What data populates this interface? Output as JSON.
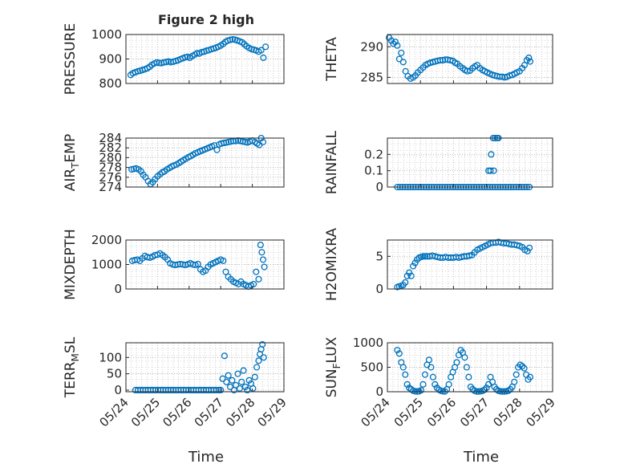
{
  "figure": {
    "title": "Figure 2 high",
    "xlabel": "Time",
    "marker_color": "#0072BD",
    "axis_color": "#262626",
    "grid_color": "#b0b0b0"
  },
  "chart_data": [
    {
      "type": "scatter",
      "ylabel": "PRESSURE",
      "ylabel_sub": "",
      "xlim": [
        0,
        5
      ],
      "ylim": [
        800,
        1000
      ],
      "yticks": [
        800,
        900,
        1000
      ],
      "yticklabels": [
        "800",
        "900",
        "1000"
      ],
      "xticklabels": [],
      "x": [
        0.15,
        0.22,
        0.3,
        0.38,
        0.45,
        0.52,
        0.6,
        0.68,
        0.75,
        0.82,
        0.9,
        0.98,
        1.05,
        1.12,
        1.2,
        1.28,
        1.35,
        1.42,
        1.5,
        1.58,
        1.65,
        1.72,
        1.8,
        1.88,
        1.95,
        2.02,
        2.1,
        2.18,
        2.25,
        2.32,
        2.4,
        2.48,
        2.55,
        2.62,
        2.7,
        2.78,
        2.85,
        2.92,
        3.0,
        3.08,
        3.15,
        3.22,
        3.3,
        3.38,
        3.45,
        3.52,
        3.6,
        3.68,
        3.75,
        3.82,
        3.9,
        3.98,
        4.05,
        4.12,
        4.2,
        4.28,
        4.35,
        4.42
      ],
      "y": [
        835,
        842,
        846,
        850,
        852,
        855,
        858,
        862,
        868,
        876,
        882,
        886,
        884,
        883,
        886,
        888,
        890,
        887,
        889,
        892,
        895,
        899,
        903,
        907,
        909,
        905,
        912,
        918,
        924,
        922,
        928,
        930,
        934,
        936,
        940,
        943,
        946,
        950,
        955,
        962,
        970,
        975,
        978,
        980,
        979,
        976,
        972,
        968,
        960,
        952,
        945,
        940,
        938,
        935,
        930,
        936,
        905,
        950
      ]
    },
    {
      "type": "scatter",
      "ylabel": "THETA",
      "ylabel_sub": "",
      "xlim": [
        0,
        5
      ],
      "ylim": [
        284,
        292
      ],
      "yticks": [
        285,
        290
      ],
      "yticklabels": [
        "285",
        "290"
      ],
      "xticklabels": [],
      "x": [
        0.05,
        0.12,
        0.18,
        0.24,
        0.3,
        0.36,
        0.42,
        0.48,
        0.55,
        0.62,
        0.7,
        0.78,
        0.85,
        0.92,
        1.0,
        1.08,
        1.15,
        1.22,
        1.3,
        1.38,
        1.45,
        1.52,
        1.6,
        1.68,
        1.75,
        1.82,
        1.9,
        1.98,
        2.05,
        2.12,
        2.2,
        2.28,
        2.35,
        2.42,
        2.5,
        2.58,
        2.65,
        2.72,
        2.8,
        2.88,
        2.95,
        3.02,
        3.1,
        3.18,
        3.25,
        3.32,
        3.4,
        3.48,
        3.55,
        3.62,
        3.7,
        3.78,
        3.85,
        3.92,
        4.0,
        4.08,
        4.15,
        4.22,
        4.28,
        4.32
      ],
      "y": [
        291.5,
        291,
        290.5,
        290.8,
        290.2,
        288,
        289,
        287.5,
        286,
        285.2,
        284.8,
        285,
        285.3,
        285.8,
        286.2,
        286.6,
        287,
        287.2,
        287.4,
        287.5,
        287.6,
        287.7,
        287.8,
        287.8,
        287.9,
        287.9,
        287.8,
        287.7,
        287.4,
        287.2,
        286.8,
        286.5,
        286.2,
        286,
        286.1,
        286.5,
        286.8,
        287,
        286.5,
        286.2,
        286,
        285.8,
        285.6,
        285.4,
        285.3,
        285.2,
        285.1,
        285.1,
        285,
        285.1,
        285.3,
        285.4,
        285.6,
        285.8,
        286,
        286.5,
        287,
        287.8,
        288.2,
        287.6
      ]
    },
    {
      "type": "scatter",
      "ylabel": "AIR",
      "ylabel_sub": "T",
      "ylabel_suffix": "EMP",
      "xlim": [
        0,
        5
      ],
      "ylim": [
        274,
        284
      ],
      "yticks": [
        274,
        276,
        278,
        280,
        282,
        284
      ],
      "yticklabels": [
        "274",
        "276",
        "278",
        "280",
        "282",
        "284"
      ],
      "xticklabels": [],
      "x": [
        0.18,
        0.25,
        0.32,
        0.4,
        0.48,
        0.55,
        0.62,
        0.7,
        0.78,
        0.85,
        0.92,
        1.0,
        1.08,
        1.15,
        1.22,
        1.3,
        1.38,
        1.45,
        1.52,
        1.6,
        1.68,
        1.75,
        1.82,
        1.9,
        1.98,
        2.05,
        2.12,
        2.2,
        2.28,
        2.35,
        2.42,
        2.5,
        2.58,
        2.65,
        2.72,
        2.8,
        2.88,
        2.95,
        3.02,
        3.1,
        3.18,
        3.25,
        3.32,
        3.4,
        3.48,
        3.55,
        3.62,
        3.7,
        3.78,
        3.85,
        3.92,
        4.0,
        4.08,
        4.15,
        4.22,
        4.28,
        4.34
      ],
      "y": [
        277.6,
        277.7,
        277.8,
        277.6,
        277.2,
        276.5,
        276,
        275.2,
        274.6,
        275,
        275.6,
        276.2,
        276.6,
        277,
        277.2,
        277.6,
        277.9,
        278.2,
        278.4,
        278.6,
        278.9,
        279.2,
        279.5,
        279.8,
        280.1,
        280.3,
        280.6,
        280.9,
        281.1,
        281.3,
        281.5,
        281.7,
        281.9,
        282.1,
        282.3,
        282.5,
        281.6,
        282.7,
        282.9,
        283,
        283.1,
        283.2,
        283.3,
        283.4,
        283.4,
        283.5,
        283.4,
        283.3,
        283.2,
        283.1,
        283.3,
        283.5,
        283.2,
        282.9,
        282.6,
        284,
        283.2
      ]
    },
    {
      "type": "scatter",
      "ylabel": "RAINFALL",
      "ylabel_sub": "",
      "xlim": [
        0,
        5
      ],
      "ylim": [
        0,
        0.3
      ],
      "yticks": [
        0,
        0.1,
        0.2
      ],
      "yticklabels": [
        "0",
        "0.1",
        "0.2"
      ],
      "xticklabels": [],
      "x": [
        0.3,
        0.38,
        0.46,
        0.54,
        0.62,
        0.7,
        0.78,
        0.86,
        0.94,
        1.02,
        1.1,
        1.18,
        1.26,
        1.34,
        1.42,
        1.5,
        1.58,
        1.66,
        1.74,
        1.82,
        1.9,
        1.98,
        2.06,
        2.14,
        2.22,
        2.3,
        2.38,
        2.46,
        2.54,
        2.62,
        2.7,
        2.78,
        2.86,
        2.94,
        3.02,
        3.1,
        3.18,
        3.26,
        3.34,
        3.42,
        3.5,
        3.58,
        3.66,
        3.74,
        3.82,
        3.9,
        3.98,
        4.06,
        4.14,
        4.22,
        4.3,
        3.06,
        3.14,
        3.2,
        3.22,
        3.26,
        3.32,
        3.36,
        3.12
      ],
      "y": [
        0,
        0,
        0,
        0,
        0,
        0,
        0,
        0,
        0,
        0,
        0,
        0,
        0,
        0,
        0,
        0,
        0,
        0,
        0,
        0,
        0,
        0,
        0,
        0,
        0,
        0,
        0,
        0,
        0,
        0,
        0,
        0,
        0,
        0,
        0,
        0,
        0,
        0,
        0,
        0,
        0,
        0,
        0,
        0,
        0,
        0,
        0,
        0,
        0,
        0,
        0,
        0.1,
        0.2,
        0.3,
        0.1,
        0.3,
        0.3,
        0.3,
        0.1
      ]
    },
    {
      "type": "scatter",
      "ylabel": "MIXDEPTH",
      "ylabel_sub": "",
      "xlim": [
        0,
        5
      ],
      "ylim": [
        0,
        2000
      ],
      "yticks": [
        0,
        1000,
        2000
      ],
      "yticklabels": [
        "0",
        "1000",
        "2000"
      ],
      "xticklabels": [],
      "x": [
        0.2,
        0.28,
        0.36,
        0.44,
        0.52,
        0.6,
        0.68,
        0.76,
        0.84,
        0.92,
        1.0,
        1.08,
        1.16,
        1.24,
        1.32,
        1.4,
        1.48,
        1.56,
        1.64,
        1.72,
        1.8,
        1.88,
        1.96,
        2.04,
        2.12,
        2.2,
        2.28,
        2.36,
        2.44,
        2.52,
        2.6,
        2.68,
        2.76,
        2.84,
        2.92,
        3.0,
        3.08,
        3.16,
        3.24,
        3.32,
        3.4,
        3.48,
        3.56,
        3.64,
        3.72,
        3.8,
        3.88,
        3.96,
        4.04,
        4.12,
        4.2,
        4.26,
        4.3,
        4.34,
        4.38
      ],
      "y": [
        1150,
        1180,
        1200,
        1150,
        1250,
        1350,
        1300,
        1280,
        1320,
        1380,
        1400,
        1450,
        1380,
        1300,
        1200,
        1050,
        1000,
        980,
        1000,
        1020,
        1000,
        980,
        1010,
        1050,
        1000,
        980,
        1020,
        800,
        700,
        750,
        900,
        1000,
        1050,
        1100,
        1150,
        1200,
        1150,
        700,
        500,
        400,
        300,
        250,
        200,
        300,
        200,
        150,
        100,
        150,
        200,
        700,
        400,
        1800,
        1500,
        1200,
        900
      ]
    },
    {
      "type": "scatter",
      "ylabel": "H2OMIXRA",
      "ylabel_sub": "",
      "xlim": [
        0,
        5
      ],
      "ylim": [
        0,
        7.5
      ],
      "yticks": [
        0,
        5
      ],
      "yticklabels": [
        "0",
        "5"
      ],
      "xticklabels": [],
      "x": [
        0.3,
        0.36,
        0.42,
        0.48,
        0.54,
        0.6,
        0.66,
        0.72,
        0.78,
        0.84,
        0.9,
        0.96,
        1.02,
        1.08,
        1.14,
        1.2,
        1.28,
        1.36,
        1.44,
        1.52,
        1.6,
        1.68,
        1.76,
        1.84,
        1.92,
        2.0,
        2.08,
        2.16,
        2.24,
        2.32,
        2.4,
        2.48,
        2.56,
        2.64,
        2.72,
        2.8,
        2.88,
        2.96,
        3.04,
        3.12,
        3.2,
        3.28,
        3.36,
        3.44,
        3.52,
        3.6,
        3.68,
        3.76,
        3.84,
        3.92,
        4.0,
        4.08,
        4.16,
        4.24,
        4.3
      ],
      "y": [
        0.3,
        0.4,
        0.5,
        0.6,
        1.0,
        2.0,
        2.5,
        2.0,
        3.5,
        4.0,
        4.5,
        4.8,
        4.9,
        5.0,
        5.0,
        5.0,
        5.0,
        5.1,
        5.0,
        4.9,
        4.8,
        4.8,
        4.9,
        4.8,
        4.8,
        4.8,
        4.9,
        4.8,
        4.9,
        5.0,
        5.0,
        5.1,
        5.2,
        5.6,
        6.0,
        6.2,
        6.4,
        6.6,
        6.8,
        7.0,
        7.1,
        7.1,
        7.2,
        7.1,
        7.0,
        7.0,
        6.9,
        6.8,
        6.8,
        6.7,
        6.6,
        6.4,
        6.0,
        5.8,
        6.3
      ]
    },
    {
      "type": "scatter",
      "ylabel": "TERR",
      "ylabel_sub": "M",
      "ylabel_suffix": "SL",
      "xlim": [
        0,
        5
      ],
      "ylim": [
        -5,
        145
      ],
      "yticks": [
        0,
        50,
        100
      ],
      "yticklabels": [
        "0",
        "50",
        "100"
      ],
      "xticklabels": [
        "05/24",
        "05/25",
        "05/26",
        "05/27",
        "05/28",
        "05/29"
      ],
      "x": [
        0.3,
        0.38,
        0.46,
        0.54,
        0.62,
        0.7,
        0.78,
        0.86,
        0.94,
        1.02,
        1.1,
        1.18,
        1.26,
        1.34,
        1.42,
        1.5,
        1.58,
        1.66,
        1.74,
        1.82,
        1.9,
        1.98,
        2.06,
        2.14,
        2.22,
        2.3,
        2.38,
        2.46,
        2.54,
        2.62,
        2.7,
        2.78,
        2.86,
        2.94,
        3.0,
        3.06,
        3.12,
        3.18,
        3.24,
        3.3,
        3.36,
        3.42,
        3.48,
        3.54,
        3.6,
        3.66,
        3.72,
        3.78,
        3.84,
        3.9,
        3.96,
        4.02,
        4.08,
        4.14,
        4.2,
        4.24,
        4.28,
        4.32,
        4.36
      ],
      "y": [
        0,
        0,
        0,
        0,
        0,
        0,
        0,
        0,
        0,
        0,
        0,
        0,
        0,
        0,
        0,
        0,
        0,
        0,
        0,
        0,
        0,
        0,
        0,
        0,
        0,
        0,
        0,
        0,
        0,
        0,
        0,
        0,
        0,
        0,
        0,
        35,
        105,
        25,
        45,
        10,
        30,
        0,
        15,
        50,
        5,
        25,
        60,
        10,
        0,
        30,
        20,
        5,
        40,
        70,
        90,
        110,
        125,
        140,
        100
      ]
    },
    {
      "type": "scatter",
      "ylabel": "SUN",
      "ylabel_sub": "F",
      "ylabel_suffix": "LUX",
      "xlim": [
        0,
        5
      ],
      "ylim": [
        0,
        1000
      ],
      "yticks": [
        0,
        500,
        1000
      ],
      "yticklabels": [
        "0",
        "500",
        "1000"
      ],
      "xticklabels": [
        "05/24",
        "05/25",
        "05/26",
        "05/27",
        "05/28",
        "05/29"
      ],
      "x": [
        0.3,
        0.36,
        0.42,
        0.48,
        0.54,
        0.6,
        0.66,
        0.72,
        0.78,
        0.84,
        0.9,
        0.96,
        1.02,
        1.08,
        1.14,
        1.2,
        1.26,
        1.32,
        1.38,
        1.44,
        1.5,
        1.56,
        1.62,
        1.68,
        1.74,
        1.8,
        1.86,
        1.92,
        1.98,
        2.04,
        2.1,
        2.16,
        2.22,
        2.28,
        2.34,
        2.4,
        2.46,
        2.52,
        2.58,
        2.64,
        2.7,
        2.76,
        2.82,
        2.88,
        2.94,
        3.0,
        3.06,
        3.12,
        3.18,
        3.24,
        3.3,
        3.36,
        3.42,
        3.48,
        3.54,
        3.6,
        3.66,
        3.72,
        3.78,
        3.84,
        3.9,
        3.96,
        4.02,
        4.08,
        4.14,
        4.2,
        4.26,
        4.32
      ],
      "y": [
        850,
        780,
        600,
        500,
        350,
        150,
        80,
        50,
        20,
        10,
        5,
        10,
        30,
        150,
        350,
        550,
        650,
        500,
        300,
        150,
        80,
        40,
        20,
        10,
        5,
        50,
        150,
        300,
        400,
        500,
        600,
        750,
        850,
        800,
        700,
        500,
        300,
        100,
        50,
        20,
        5,
        5,
        10,
        20,
        40,
        80,
        150,
        300,
        200,
        100,
        50,
        20,
        10,
        5,
        5,
        10,
        20,
        50,
        100,
        200,
        350,
        500,
        550,
        520,
        480,
        350,
        250,
        300
      ]
    }
  ]
}
